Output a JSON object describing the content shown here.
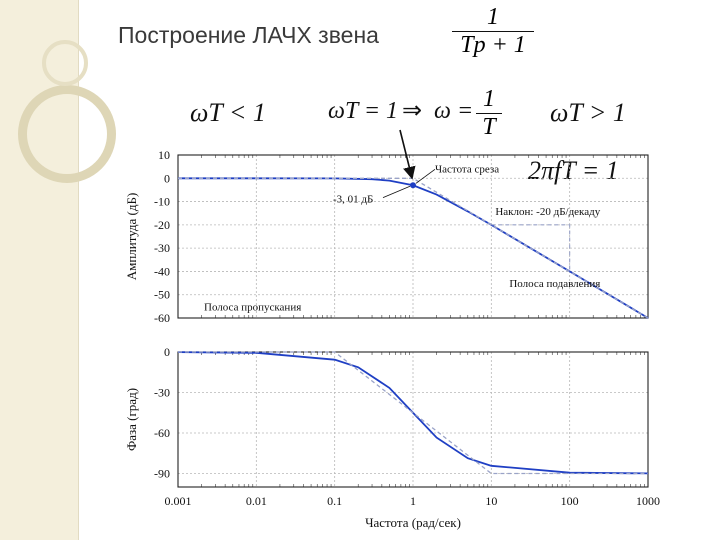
{
  "slide": {
    "title": "Построение ЛАЧХ звена",
    "transfer_function": {
      "numerator": "1",
      "denominator": "Tp + 1"
    },
    "formula_left": "ωT < 1",
    "formula_middle_lhs": "ωT = 1",
    "formula_implies": "⇒",
    "formula_middle_rhs": "ω =",
    "formula_middle_frac": {
      "numerator": "1",
      "denominator": "T"
    },
    "formula_right": "ωT > 1",
    "formula_cutoff": "2πfT = 1"
  },
  "colors": {
    "curve": "#1f3fc4",
    "asymptote": "#9aa3c8",
    "grid": "#b8b8b8",
    "side_strip": "#f4efdc",
    "ring": "#ded6b6"
  },
  "chart_data": [
    {
      "type": "line",
      "ylabel": "Амплитуда (дБ)",
      "xscale": "log",
      "xlim": [
        0.001,
        1000
      ],
      "ylim": [
        -60,
        10
      ],
      "yticks": [
        10,
        0,
        -10,
        -20,
        -30,
        -40,
        -50,
        -60
      ],
      "ytick_labels": [
        "10",
        "0",
        "-10",
        "-20",
        "-30",
        "-40",
        "-50",
        "-60"
      ],
      "grid": true,
      "series": [
        {
          "role": "response",
          "x": [
            0.001,
            0.01,
            0.1,
            0.3,
            0.5,
            1,
            2,
            5,
            10,
            100,
            1000
          ],
          "y": [
            0,
            0,
            -0.04,
            -0.4,
            -1,
            -3.01,
            -7,
            -14.2,
            -20,
            -40,
            -60
          ]
        },
        {
          "role": "asymptote",
          "x": [
            0.001,
            1,
            1000
          ],
          "y": [
            0,
            0,
            -60
          ]
        }
      ],
      "annotations": [
        {
          "text": "Частота среза",
          "x": 1,
          "y": 0
        },
        {
          "text": "-3, 01 дБ",
          "x": 1,
          "y": -3.01
        },
        {
          "text": "Наклон: -20 дБ/декаду",
          "x": 10,
          "y": -20
        },
        {
          "text": "Полоса подавления",
          "x": 100,
          "y": -45
        },
        {
          "text": "Полоса пропускания",
          "x": 0.003,
          "y": -55
        }
      ]
    },
    {
      "type": "line",
      "ylabel": "Фаза (град)",
      "xlabel": "Частота (рад/сек)",
      "xscale": "log",
      "xlim": [
        0.001,
        1000
      ],
      "ylim": [
        -100,
        0
      ],
      "yticks": [
        0,
        -30,
        -60,
        -90
      ],
      "ytick_labels": [
        "0",
        "-30",
        "-60",
        "-90"
      ],
      "xticks": [
        0.001,
        0.01,
        0.1,
        1,
        10,
        100,
        1000
      ],
      "xtick_labels": [
        "0.001",
        "0.01",
        "0.1",
        "1",
        "10",
        "100",
        "1000"
      ],
      "grid": true,
      "series": [
        {
          "role": "response",
          "x": [
            0.001,
            0.01,
            0.1,
            0.2,
            0.5,
            1,
            2,
            5,
            10,
            100,
            1000
          ],
          "y": [
            -0.06,
            -0.57,
            -5.7,
            -11.3,
            -26.6,
            -45,
            -63.4,
            -78.7,
            -84.3,
            -89.4,
            -89.9
          ]
        },
        {
          "role": "asymptote",
          "x": [
            0.001,
            0.1,
            10,
            1000
          ],
          "y": [
            0,
            0,
            -90,
            -90
          ]
        }
      ]
    }
  ]
}
